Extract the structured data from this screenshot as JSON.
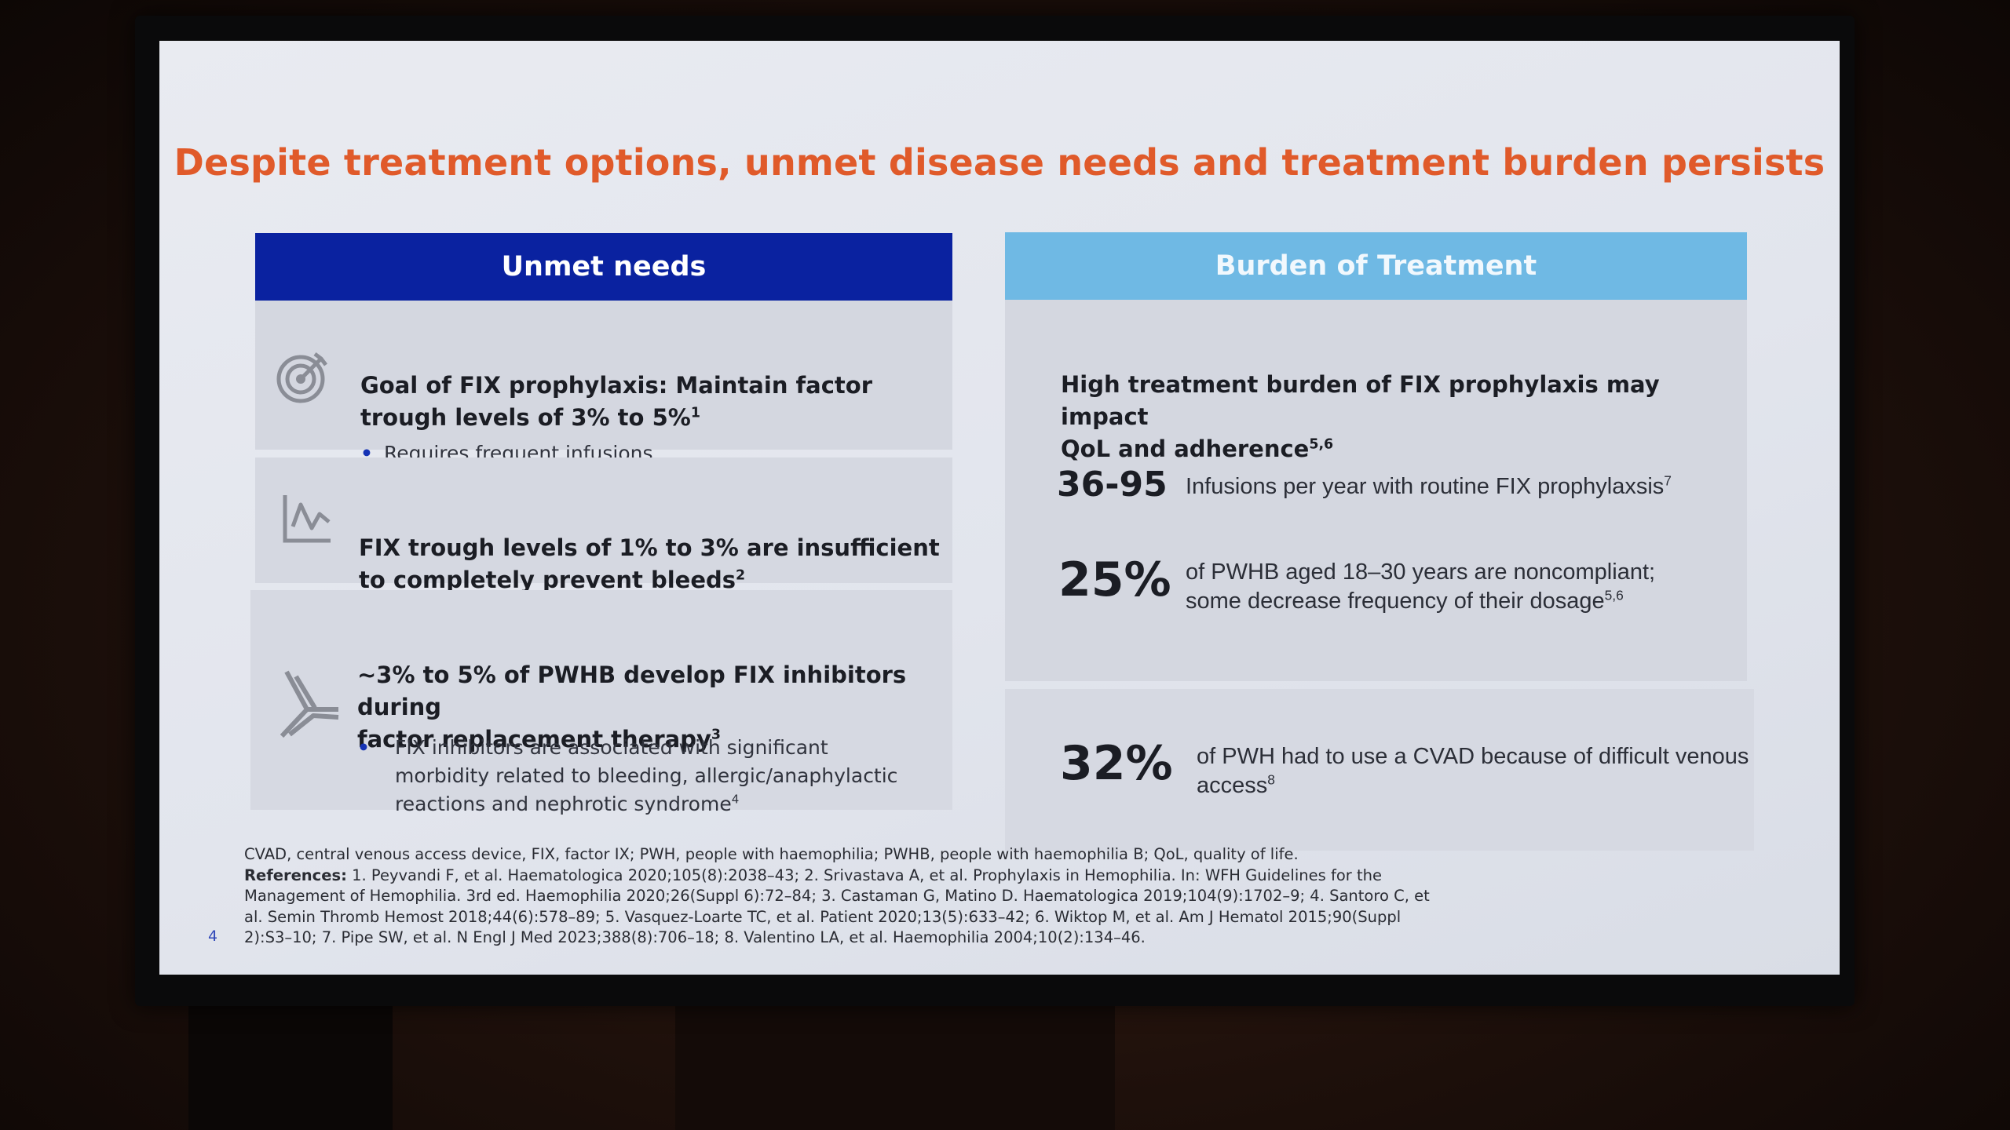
{
  "slide": {
    "title": "Despite treatment options, unmet disease needs and treatment burden persists",
    "page_number": "4"
  },
  "left": {
    "header": "Unmet needs",
    "items": [
      {
        "icon": "target-icon",
        "title_line1": "Goal of FIX prophylaxis: Maintain factor",
        "title_line2": "trough levels of 3% to 5%",
        "title_sup": "1",
        "bullet": "Requires frequent infusions"
      },
      {
        "icon": "line-chart-icon",
        "title_line1": "FIX trough levels of 1% to 3% are insufficient",
        "title_line2": "to completely prevent bleeds",
        "title_sup": "2"
      },
      {
        "icon": "antibody-icon",
        "title_line1": "~3% to 5% of PWHB develop FIX inhibitors during",
        "title_line2": "factor replacement therapy",
        "title_sup": "3",
        "bullet_line1": "FIX inhibitors are associated with significant",
        "bullet_line2": "morbidity related to bleeding, allergic/anaphylactic",
        "bullet_line3": "reactions and nephrotic syndrome",
        "bullet_sup": "4"
      }
    ]
  },
  "right": {
    "header": "Burden of Treatment",
    "intro_line1": "High treatment burden of FIX prophylaxis may impact",
    "intro_line2": "QoL and adherence",
    "intro_sup": "5,6",
    "stats": [
      {
        "value": "36-95",
        "desc_line1": "Infusions per year with routine FIX prophylaxsis",
        "desc_sup": "7"
      },
      {
        "value": "25%",
        "desc_line1": "of PWHB aged 18–30 years are noncompliant;",
        "desc_line2": "some decrease frequency of their dosage",
        "desc_sup": "5,6"
      },
      {
        "value": "32%",
        "desc_line1": "of PWH had to use a CVAD because of difficult venous",
        "desc_line2": "access",
        "desc_sup": "8"
      }
    ]
  },
  "footnotes": {
    "abbreviations": "CVAD, central venous access device, FIX, factor IX; PWH, people with haemophilia; PWHB, people with haemophilia B; QoL, quality of life.",
    "references_label": "References:",
    "ref_line1": "1. Peyvandi F, et al. Haematologica 2020;105(8):2038–43; 2. Srivastava A, et al. Prophylaxis in Hemophilia. In: WFH Guidelines for the",
    "ref_line2": "Management of Hemophilia. 3rd ed. Haemophilia 2020;26(Suppl 6):72–84; 3. Castaman G, Matino D. Haematologica 2019;104(9):1702–9; 4. Santoro C, et",
    "ref_line3": "al. Semin Thromb Hemost 2018;44(6):578–89; 5. Vasquez-Loarte TC, et al. Patient 2020;13(5):633–42; 6. Wiktop M, et al. Am J Hematol 2015;90(Suppl",
    "ref_line4": "2):S3–10; 7. Pipe SW, et al. N Engl J Med 2023;388(8):706–18; 8. Valentino LA, et al. Haemophilia 2004;10(2):134–46."
  }
}
